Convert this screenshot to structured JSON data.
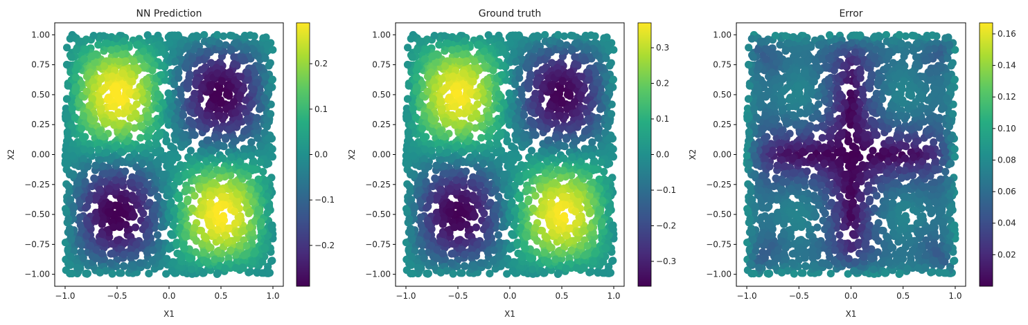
{
  "chart_data": [
    {
      "type": "scatter",
      "title": "NN Prediction",
      "xlabel": "X1",
      "ylabel": "X2",
      "xlim": [
        -1.1,
        1.1
      ],
      "ylim": [
        -1.1,
        1.1
      ],
      "x_ticks": [
        -1.0,
        -0.5,
        0.0,
        0.5,
        1.0
      ],
      "x_tick_labels": [
        "−1.0",
        "−0.5",
        "0.0",
        "0.5",
        "1.0"
      ],
      "y_ticks": [
        -1.0,
        -0.75,
        -0.5,
        -0.25,
        0.0,
        0.25,
        0.5,
        0.75,
        1.0
      ],
      "y_tick_labels": [
        "−1.00",
        "−0.75",
        "−0.50",
        "−0.25",
        "0.00",
        "0.25",
        "0.50",
        "0.75",
        "1.00"
      ],
      "colormap": "viridis",
      "color_range": [
        -0.29,
        0.29
      ],
      "colorbar_ticks": [
        -0.2,
        -0.1,
        0.0,
        0.1,
        0.2
      ],
      "colorbar_tick_labels": [
        "−0.2",
        "−0.1",
        "0.0",
        "0.1",
        "0.2"
      ],
      "field": "prediction",
      "grid": false
    },
    {
      "type": "scatter",
      "title": "Ground truth",
      "xlabel": "X1",
      "ylabel": "X2",
      "xlim": [
        -1.1,
        1.1
      ],
      "ylim": [
        -1.1,
        1.1
      ],
      "x_ticks": [
        -1.0,
        -0.5,
        0.0,
        0.5,
        1.0
      ],
      "x_tick_labels": [
        "−1.0",
        "−0.5",
        "0.0",
        "0.5",
        "1.0"
      ],
      "y_ticks": [
        -1.0,
        -0.75,
        -0.5,
        -0.25,
        0.0,
        0.25,
        0.5,
        0.75,
        1.0
      ],
      "y_tick_labels": [
        "−1.00",
        "−0.75",
        "−0.50",
        "−0.25",
        "0.00",
        "0.25",
        "0.50",
        "0.75",
        "1.00"
      ],
      "colormap": "viridis",
      "color_range": [
        -0.37,
        0.37
      ],
      "colorbar_ticks": [
        -0.3,
        -0.2,
        -0.1,
        0.0,
        0.1,
        0.2,
        0.3
      ],
      "colorbar_tick_labels": [
        "−0.3",
        "−0.2",
        "−0.1",
        "0.0",
        "0.1",
        "0.2",
        "0.3"
      ],
      "field": "truth",
      "grid": false
    },
    {
      "type": "scatter",
      "title": "Error",
      "xlabel": "X1",
      "ylabel": "X2",
      "xlim": [
        -1.1,
        1.1
      ],
      "ylim": [
        -1.1,
        1.1
      ],
      "x_ticks": [
        -1.0,
        -0.5,
        0.0,
        0.5,
        1.0
      ],
      "x_tick_labels": [
        "−1.0",
        "−0.5",
        "0.0",
        "0.5",
        "1.0"
      ],
      "y_ticks": [
        -1.0,
        -0.75,
        -0.5,
        -0.25,
        0.0,
        0.25,
        0.5,
        0.75,
        1.0
      ],
      "y_tick_labels": [
        "−1.00",
        "−0.75",
        "−0.50",
        "−0.25",
        "0.00",
        "0.25",
        "0.50",
        "0.75",
        "1.00"
      ],
      "colormap": "viridis",
      "color_range": [
        0.0,
        0.167
      ],
      "colorbar_ticks": [
        0.02,
        0.04,
        0.06,
        0.08,
        0.1,
        0.12,
        0.14,
        0.16
      ],
      "colorbar_tick_labels": [
        "0.02",
        "0.04",
        "0.06",
        "0.08",
        "0.10",
        "0.12",
        "0.14",
        "0.16"
      ],
      "field": "error",
      "grid": false
    }
  ]
}
